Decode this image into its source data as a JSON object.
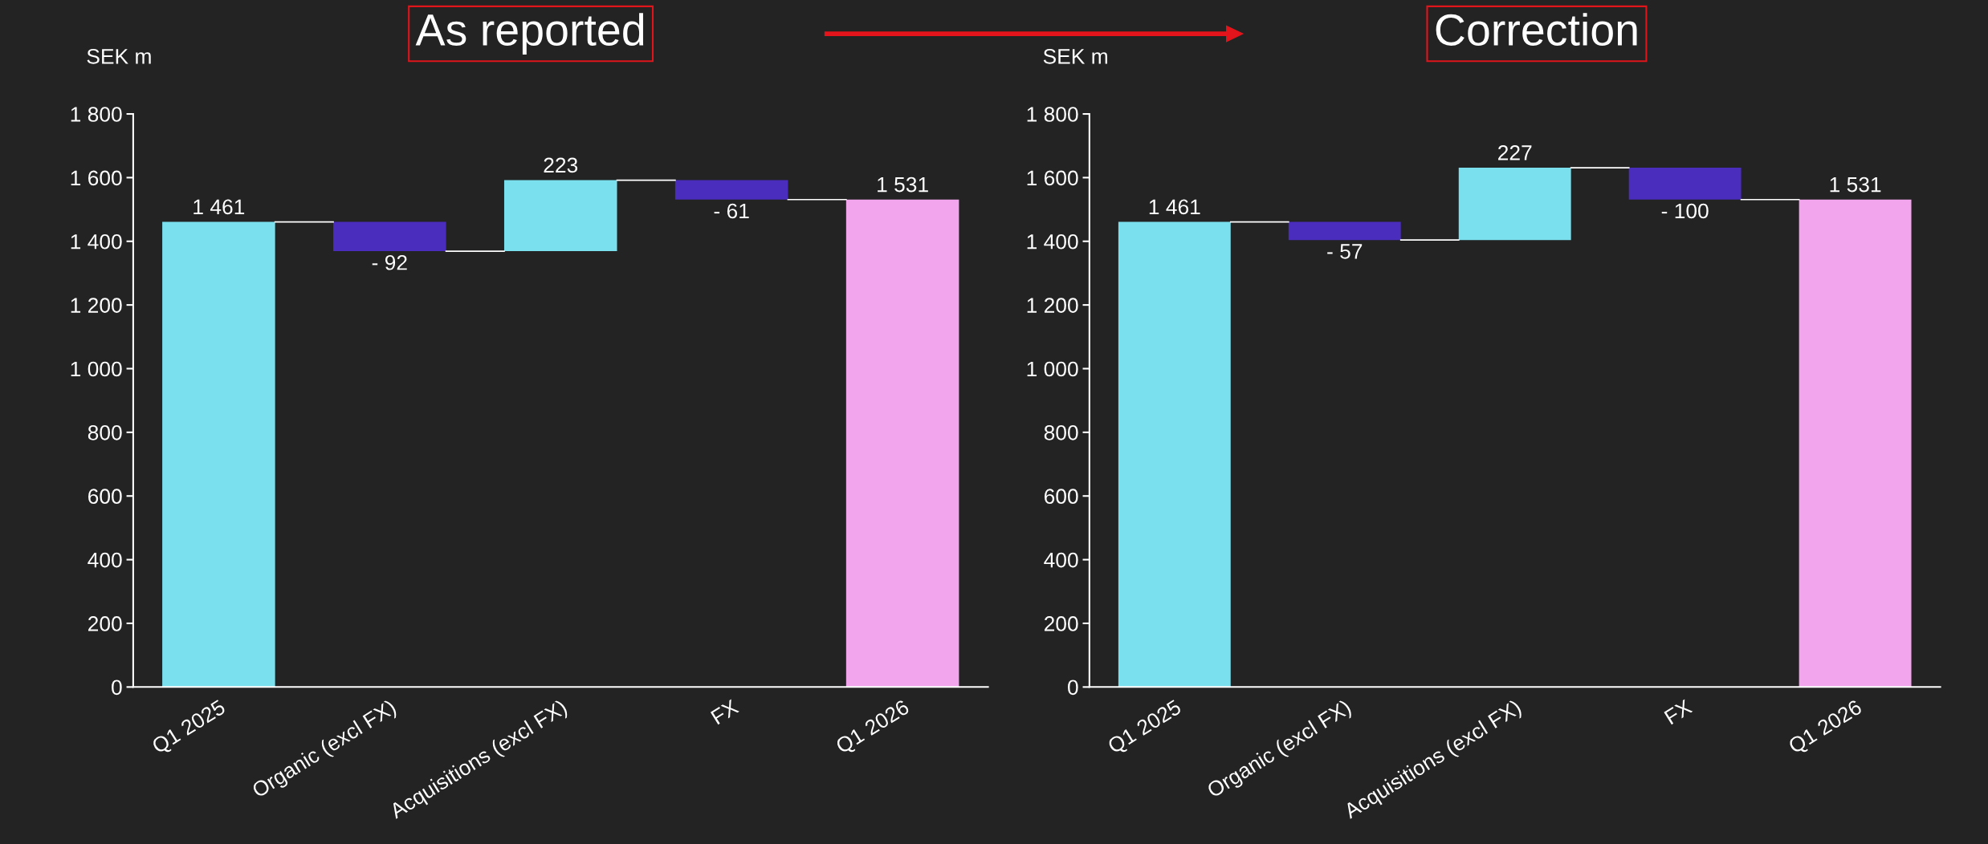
{
  "chart_data": [
    {
      "type": "bar",
      "title": "As reported",
      "ylabel": "SEK m",
      "categories": [
        "Q1 2025",
        "Organic (excl FX)",
        "Acquisitions (excl FX)",
        "FX",
        "Q1 2026"
      ],
      "values": [
        1461,
        -92,
        223,
        -61,
        1531
      ],
      "base": [
        0,
        1461,
        1369,
        1592,
        0
      ],
      "colors": [
        "#7ae0ee",
        "#4a2dbd",
        "#7ae0ee",
        "#4a2dbd",
        "#f2a4ec"
      ],
      "value_labels": [
        "1 461",
        "- 92",
        "223",
        "- 61",
        "1 531"
      ],
      "ylim": [
        0,
        1800
      ],
      "yticks": [
        {
          "value": 0,
          "label": "0"
        },
        {
          "value": 200,
          "label": "200"
        },
        {
          "value": 400,
          "label": "400"
        },
        {
          "value": 600,
          "label": "600"
        },
        {
          "value": 800,
          "label": "800"
        },
        {
          "value": 1000,
          "label": "1 000"
        },
        {
          "value": 1200,
          "label": "1 200"
        },
        {
          "value": 1400,
          "label": "1 400"
        },
        {
          "value": 1600,
          "label": "1 600"
        },
        {
          "value": 1800,
          "label": "1 800"
        }
      ],
      "grid": false,
      "legend": false
    },
    {
      "type": "bar",
      "title": "Correction",
      "ylabel": "SEK m",
      "categories": [
        "Q1 2025",
        "Organic (excl FX)",
        "Acquisitions (excl FX)",
        "FX",
        "Q1 2026"
      ],
      "values": [
        1461,
        -57,
        227,
        -100,
        1531
      ],
      "base": [
        0,
        1461,
        1404,
        1631,
        0
      ],
      "colors": [
        "#7ae0ee",
        "#4a2dbd",
        "#7ae0ee",
        "#4a2dbd",
        "#f2a4ec"
      ],
      "value_labels": [
        "1 461",
        "- 57",
        "227",
        "- 100",
        "1 531"
      ],
      "ylim": [
        0,
        1800
      ],
      "yticks": [
        {
          "value": 0,
          "label": "0"
        },
        {
          "value": 200,
          "label": "200"
        },
        {
          "value": 400,
          "label": "400"
        },
        {
          "value": 600,
          "label": "600"
        },
        {
          "value": 800,
          "label": "800"
        },
        {
          "value": 1000,
          "label": "1 000"
        },
        {
          "value": 1200,
          "label": "1 200"
        },
        {
          "value": 1400,
          "label": "1 400"
        },
        {
          "value": 1600,
          "label": "1 600"
        },
        {
          "value": 1800,
          "label": "1 800"
        }
      ],
      "grid": false,
      "legend": false
    }
  ]
}
